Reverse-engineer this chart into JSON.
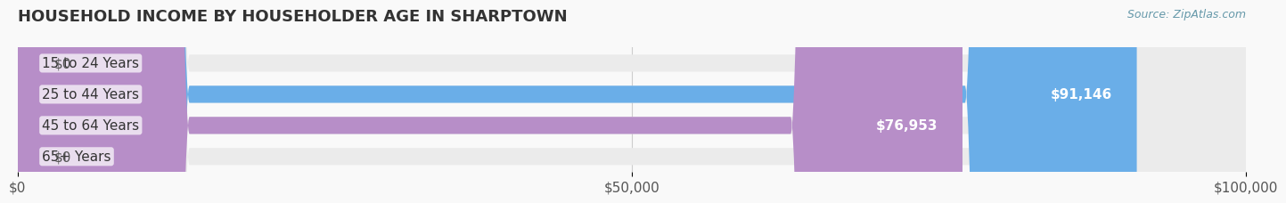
{
  "title": "HOUSEHOLD INCOME BY HOUSEHOLDER AGE IN SHARPTOWN",
  "source": "Source: ZipAtlas.com",
  "categories": [
    "15 to 24 Years",
    "25 to 44 Years",
    "45 to 64 Years",
    "65+ Years"
  ],
  "values": [
    0,
    91146,
    76953,
    0
  ],
  "bar_colors": [
    "#f4a0a8",
    "#6aaee8",
    "#b78ec8",
    "#6dcdd4"
  ],
  "bar_bg_color": "#ebebeb",
  "label_colors": [
    "#555555",
    "#ffffff",
    "#ffffff",
    "#555555"
  ],
  "value_labels": [
    "$0",
    "$91,146",
    "$76,953",
    "$0"
  ],
  "xmax": 100000,
  "xticks": [
    0,
    50000,
    100000
  ],
  "xticklabels": [
    "$0",
    "$50,000",
    "$100,000"
  ],
  "background_color": "#f9f9f9",
  "title_fontsize": 13,
  "label_fontsize": 11,
  "source_fontsize": 9,
  "bar_height": 0.55,
  "figsize": [
    14.06,
    2.33
  ],
  "dpi": 100
}
